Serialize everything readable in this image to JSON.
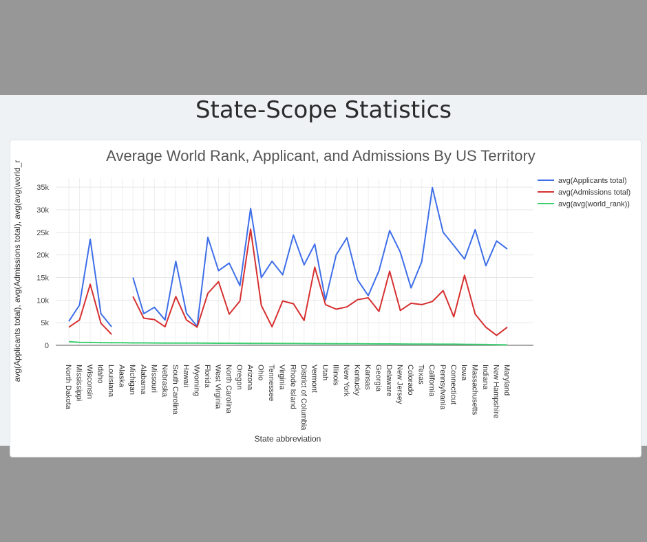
{
  "page": {
    "title": "State-Scope Statistics"
  },
  "chart_data": {
    "type": "line",
    "title": "Average World Rank, Applicant, and Admissions By US Territory",
    "xlabel": "State abbreviation",
    "ylabel": "avg(Applicants total), avg(Admissions total), avg(avg(world_r",
    "ylim": [
      0,
      37000
    ],
    "yticks": [
      0,
      5000,
      10000,
      15000,
      20000,
      25000,
      30000,
      35000
    ],
    "ytick_labels": [
      "0",
      "5k",
      "10k",
      "15k",
      "20k",
      "25k",
      "30k",
      "35k"
    ],
    "grid": true,
    "legend": "top-right",
    "categories": [
      "North Dakota",
      "Mississippi",
      "Wisconsin",
      "Idaho",
      "Louisiana",
      "Alaska",
      "Michigan",
      "Alabama",
      "Missouri",
      "Nebraska",
      "South Carolina",
      "Hawaii",
      "Wyoming",
      "Florida",
      "West Virginia",
      "North Carolina",
      "Oregon",
      "Arizona",
      "Ohio",
      "Tennessee",
      "Virginia",
      "Rhode Island",
      "District of Columbia",
      "Vermont",
      "Utah",
      "Illinois",
      "New York",
      "Kentucky",
      "Kansas",
      "Georgia",
      "Delaware",
      "New Jersey",
      "Colorado",
      "Texas",
      "California",
      "Pennsylvania",
      "Connecticut",
      "Iowa",
      "Massachusetts",
      "Indiana",
      "New Hampshire",
      "Maryland"
    ],
    "series": [
      {
        "name": "avg(Applicants total)",
        "color": "#3d6ee8",
        "values": [
          5300,
          8900,
          23500,
          7000,
          4100,
          null,
          15000,
          7000,
          8400,
          5600,
          18600,
          7100,
          4200,
          23900,
          16500,
          18200,
          13200,
          30300,
          15000,
          18600,
          15600,
          24400,
          17800,
          22400,
          10000,
          20000,
          23800,
          14500,
          11000,
          16500,
          25400,
          20600,
          12700,
          18500,
          34900,
          25000,
          22100,
          19100,
          25600,
          17600,
          23100,
          21300
        ]
      },
      {
        "name": "avg(Admissions total)",
        "color": "#d62f2f",
        "values": [
          4000,
          5600,
          13500,
          4900,
          2400,
          null,
          10800,
          6000,
          5700,
          4100,
          10800,
          5600,
          4000,
          11500,
          14100,
          6900,
          9800,
          25700,
          8800,
          4100,
          9800,
          9200,
          5500,
          17300,
          9000,
          8000,
          8500,
          10100,
          10500,
          7500,
          16400,
          7700,
          9300,
          9000,
          9700,
          12100,
          6300,
          15500,
          6900,
          4000,
          2200,
          4000
        ]
      },
      {
        "name": "avg(avg(world_rank))",
        "color": "#3ccf6f",
        "values": [
          800,
          650,
          620,
          600,
          580,
          560,
          540,
          530,
          520,
          510,
          500,
          490,
          480,
          470,
          460,
          450,
          440,
          430,
          420,
          410,
          400,
          390,
          380,
          370,
          360,
          350,
          340,
          330,
          320,
          310,
          300,
          290,
          280,
          270,
          260,
          250,
          240,
          220,
          200,
          170,
          130,
          90
        ]
      }
    ]
  }
}
